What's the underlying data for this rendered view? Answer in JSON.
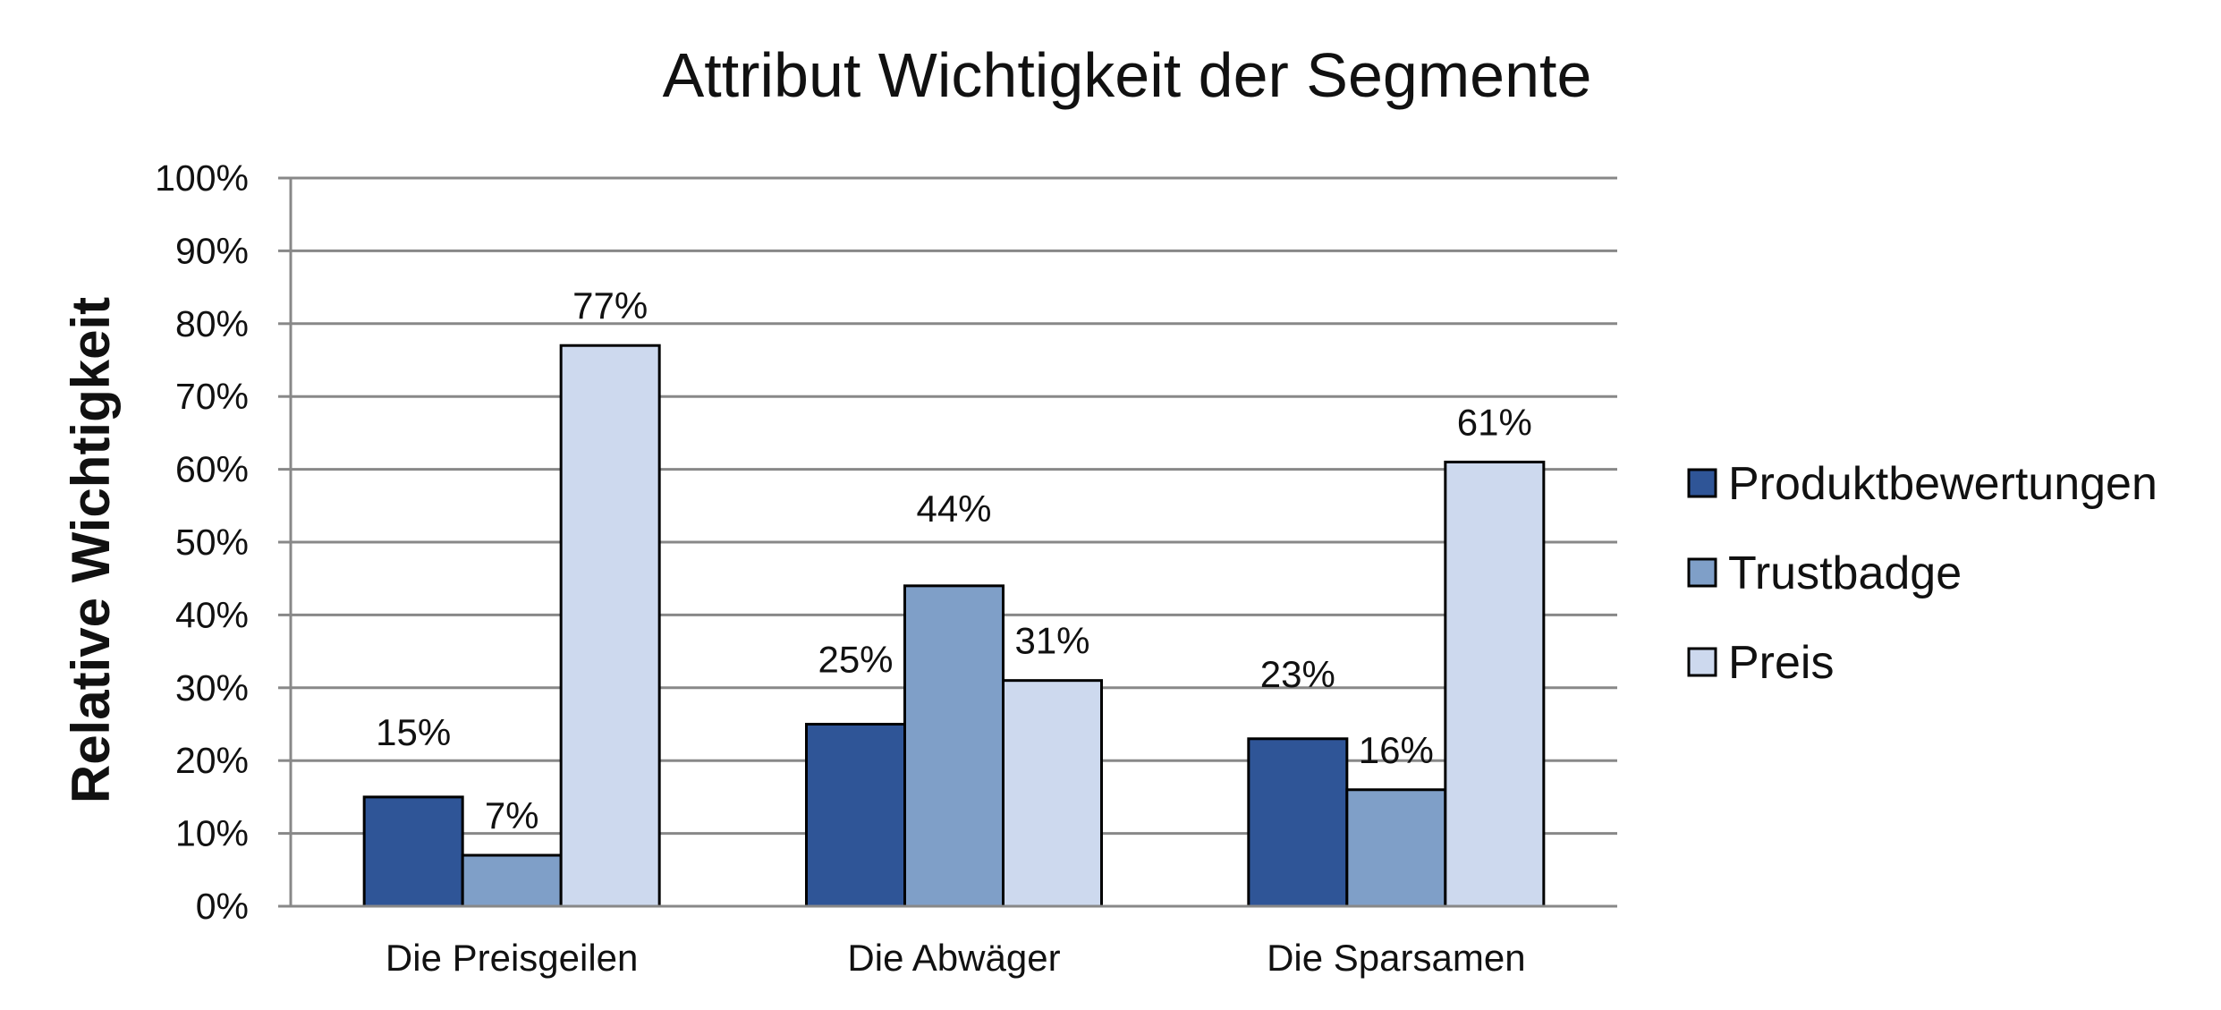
{
  "chart_data": {
    "type": "bar",
    "title": "Attribut Wichtigkeit der Segmente",
    "xlabel": "",
    "ylabel": "Relative Wichtigkeit",
    "categories": [
      "Die Preisgeilen",
      "Die Abwäger",
      "Die Sparsamen"
    ],
    "series": [
      {
        "name": "Produktbewertungen",
        "color": "#2F5597",
        "values": [
          15,
          25,
          23
        ],
        "labels": [
          "15%",
          "25%",
          "23%"
        ]
      },
      {
        "name": "Trustbadge",
        "color": "#7F9FC8",
        "values": [
          7,
          44,
          16
        ],
        "labels": [
          "7%",
          "44%",
          "16%"
        ]
      },
      {
        "name": "Preis",
        "color": "#CDD9EE",
        "values": [
          77,
          31,
          61
        ],
        "labels": [
          "77%",
          "31%",
          "61%"
        ]
      }
    ],
    "ylim": [
      0,
      100
    ],
    "yticks": [
      "0%",
      "10%",
      "20%",
      "30%",
      "40%",
      "50%",
      "60%",
      "70%",
      "80%",
      "90%",
      "100%"
    ],
    "grid": true,
    "legend_position": "right"
  }
}
